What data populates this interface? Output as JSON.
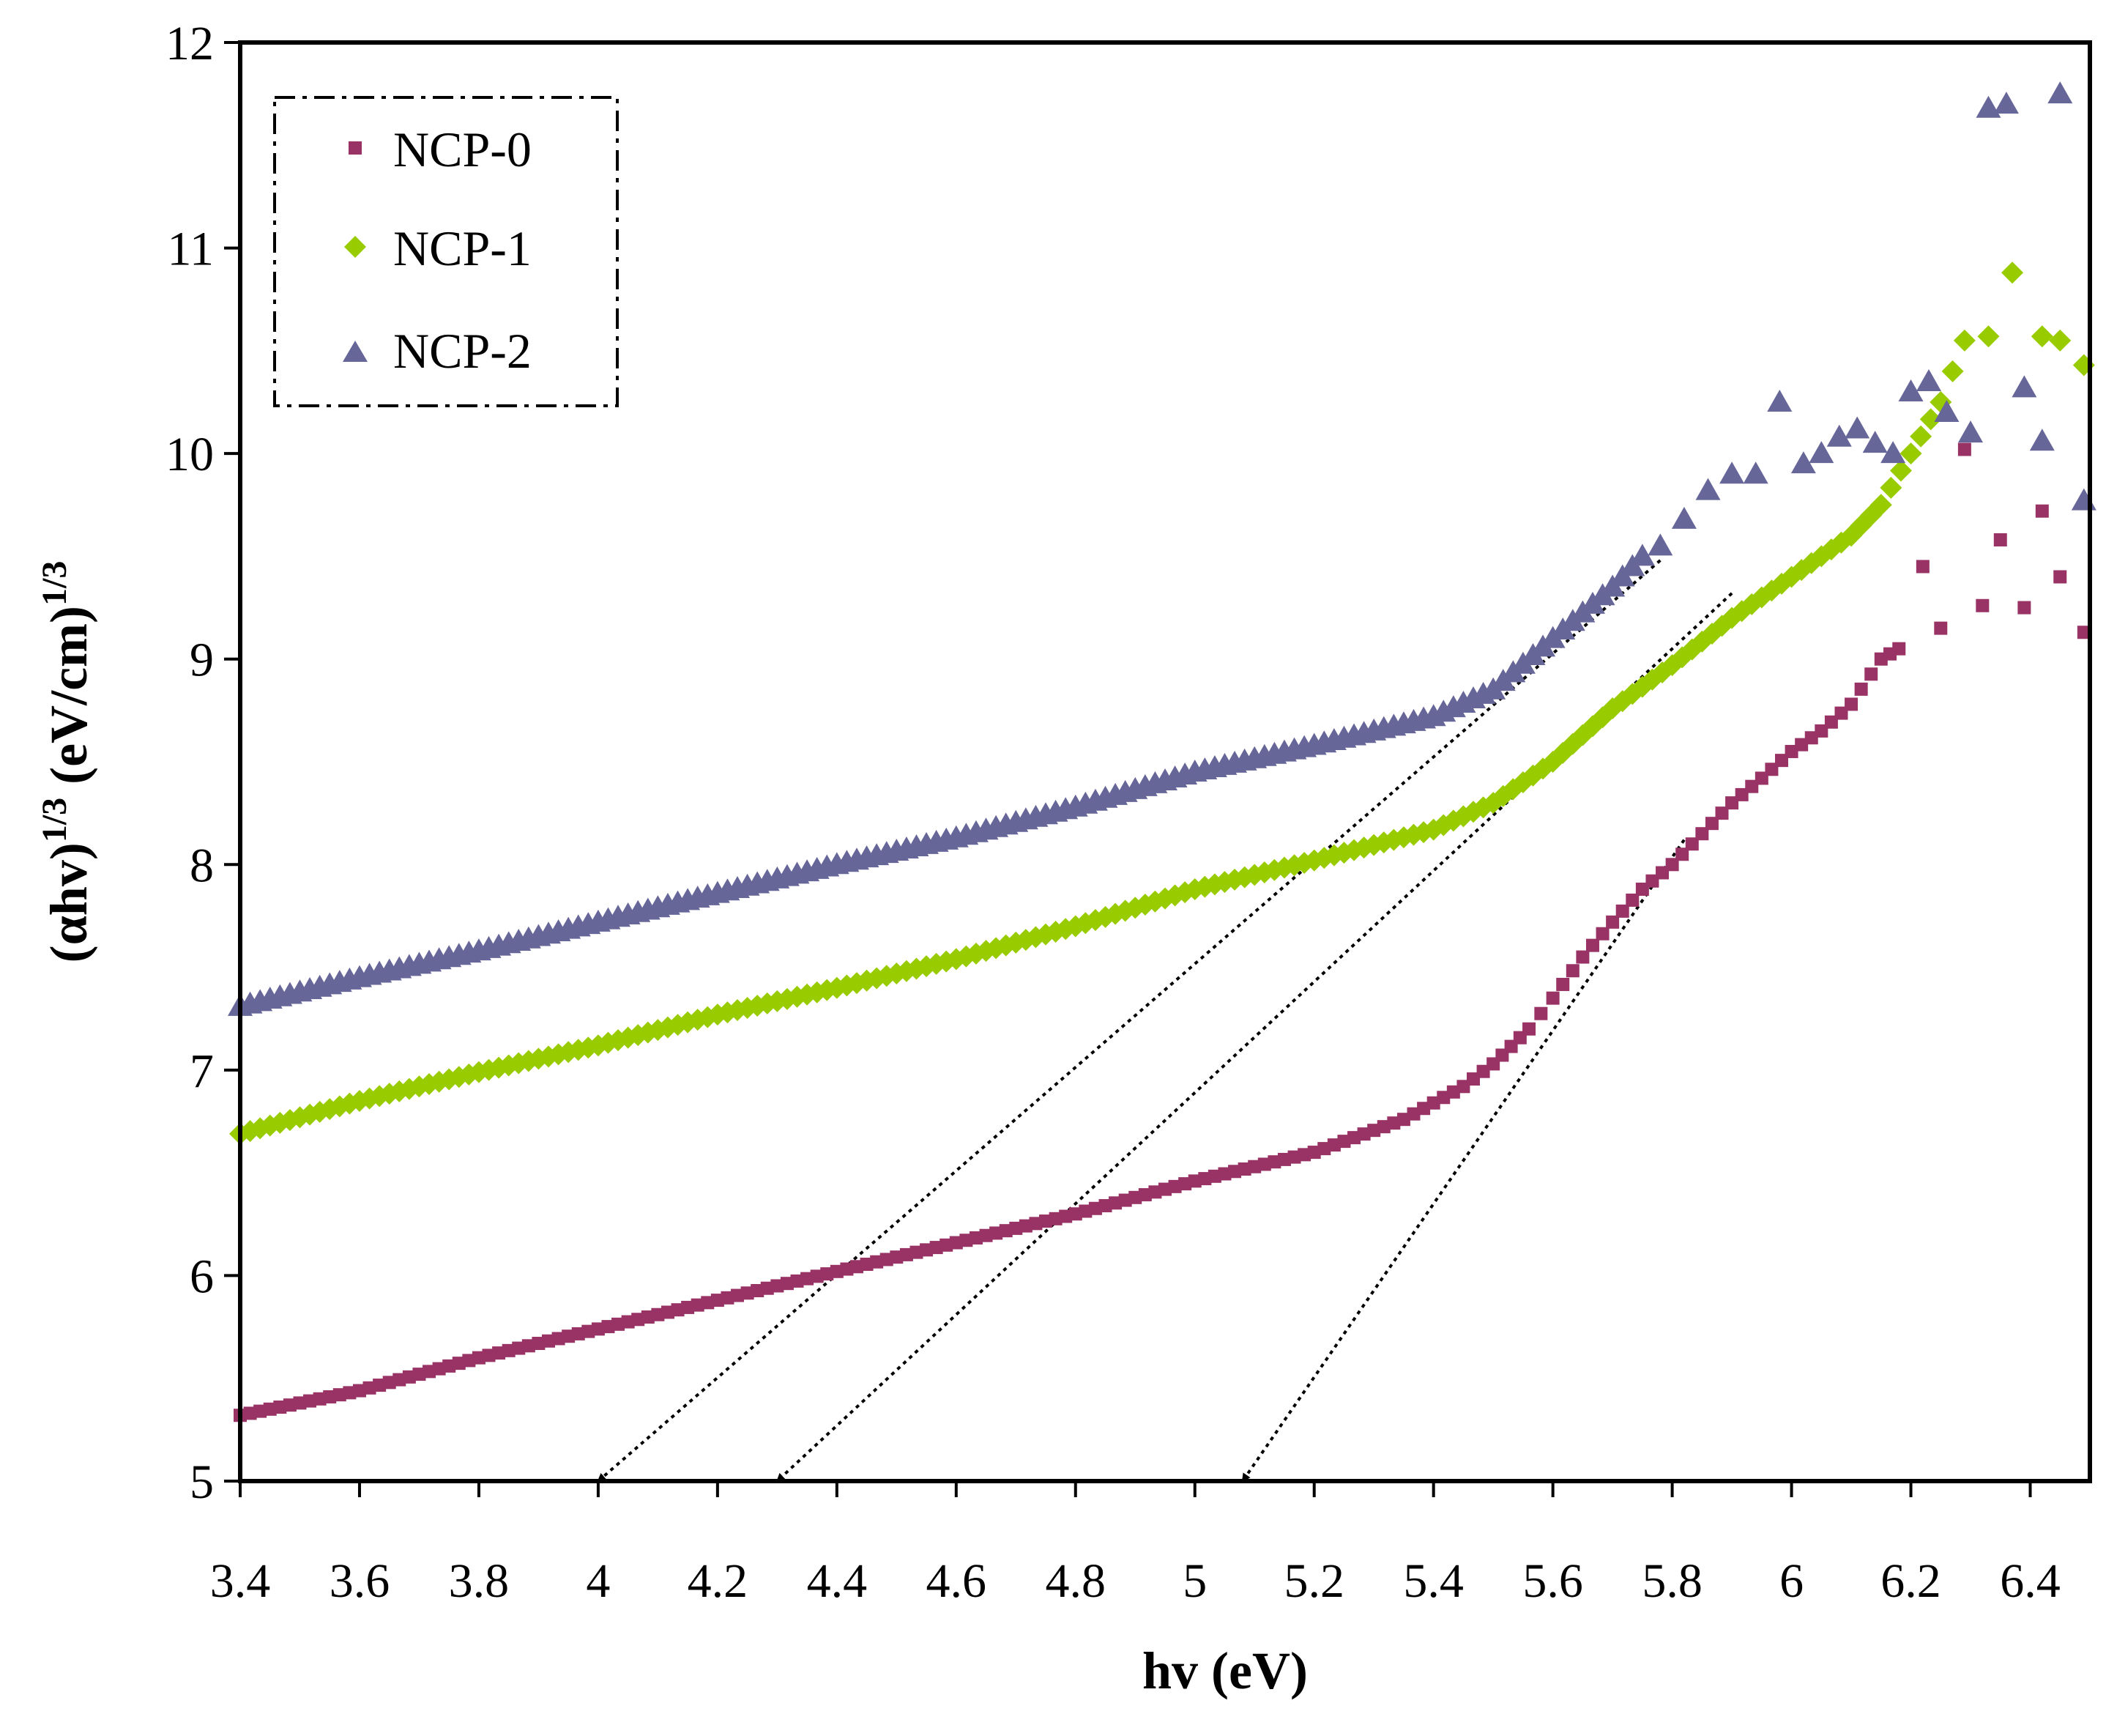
{
  "chart_data": {
    "type": "scatter",
    "title": "",
    "xlabel": "hv (eV)",
    "ylabel_main": "(αhv)",
    "ylabel_sup1": "1/3",
    "ylabel_mid": " (eV/cm)",
    "ylabel_sup2": "1/3",
    "xlim": [
      3.4,
      6.5
    ],
    "ylim": [
      5,
      12
    ],
    "x_ticks": [
      3.4,
      3.6,
      3.8,
      4,
      4.2,
      4.4,
      4.6,
      4.8,
      5,
      5.2,
      5.4,
      5.6,
      5.8,
      6,
      6.2,
      6.4
    ],
    "x_tick_labels": [
      "3.4",
      "3.6",
      "3.8",
      "4",
      "4.2",
      "4.4",
      "4.6",
      "4.8",
      "5",
      "5.2",
      "5.4",
      "5.6",
      "5.8",
      "6",
      "6.2",
      "6.4"
    ],
    "y_ticks": [
      5,
      6,
      7,
      8,
      9,
      10,
      11,
      12
    ],
    "y_tick_labels": [
      "5",
      "6",
      "7",
      "8",
      "9",
      "10",
      "11",
      "12"
    ],
    "grid": false,
    "legend_position": "top-left",
    "series": [
      {
        "name": "NCP-0",
        "marker": "square",
        "color": "#993366",
        "anchors": [
          [
            3.4,
            5.32
          ],
          [
            3.6,
            5.44
          ],
          [
            3.8,
            5.6
          ],
          [
            4.0,
            5.74
          ],
          [
            4.2,
            5.88
          ],
          [
            4.4,
            6.02
          ],
          [
            4.6,
            6.16
          ],
          [
            4.8,
            6.3
          ],
          [
            5.0,
            6.46
          ],
          [
            5.2,
            6.6
          ],
          [
            5.35,
            6.76
          ],
          [
            5.45,
            6.92
          ],
          [
            5.5,
            7.03
          ],
          [
            5.56,
            7.2
          ],
          [
            5.6,
            7.35
          ],
          [
            5.65,
            7.55
          ],
          [
            5.7,
            7.72
          ],
          [
            5.75,
            7.88
          ],
          [
            5.8,
            8.0
          ],
          [
            5.85,
            8.15
          ],
          [
            5.9,
            8.3
          ],
          [
            5.95,
            8.42
          ],
          [
            6.0,
            8.55
          ],
          [
            6.05,
            8.65
          ],
          [
            6.1,
            8.78
          ],
          [
            6.15,
            9.0
          ],
          [
            6.18,
            9.05
          ]
        ],
        "extra_points": [
          [
            6.22,
            9.45
          ],
          [
            6.25,
            9.15
          ],
          [
            6.29,
            10.02
          ],
          [
            6.32,
            9.26
          ],
          [
            6.35,
            9.58
          ],
          [
            6.39,
            9.25
          ],
          [
            6.42,
            9.72
          ],
          [
            6.45,
            9.4
          ],
          [
            6.49,
            9.13
          ]
        ]
      },
      {
        "name": "NCP-1",
        "marker": "diamond",
        "color": "#99CC00",
        "anchors": [
          [
            3.4,
            6.69
          ],
          [
            3.6,
            6.85
          ],
          [
            3.8,
            6.99
          ],
          [
            4.0,
            7.12
          ],
          [
            4.2,
            7.27
          ],
          [
            4.4,
            7.4
          ],
          [
            4.6,
            7.54
          ],
          [
            4.8,
            7.7
          ],
          [
            5.0,
            7.88
          ],
          [
            5.2,
            8.02
          ],
          [
            5.4,
            8.17
          ],
          [
            5.5,
            8.3
          ],
          [
            5.6,
            8.5
          ],
          [
            5.7,
            8.76
          ],
          [
            5.8,
            8.97
          ],
          [
            5.9,
            9.2
          ],
          [
            6.0,
            9.4
          ],
          [
            6.1,
            9.6
          ],
          [
            6.15,
            9.75
          ],
          [
            6.2,
            10.0
          ],
          [
            6.25,
            10.25
          ],
          [
            6.29,
            10.55
          ]
        ],
        "extra_points": [
          [
            6.33,
            10.57
          ],
          [
            6.37,
            10.88
          ],
          [
            6.42,
            10.57
          ],
          [
            6.45,
            10.55
          ],
          [
            6.49,
            10.43
          ]
        ]
      },
      {
        "name": "NCP-2",
        "marker": "triangle",
        "color": "#666699",
        "anchors": [
          [
            3.4,
            7.31
          ],
          [
            3.6,
            7.45
          ],
          [
            3.8,
            7.58
          ],
          [
            4.0,
            7.72
          ],
          [
            4.2,
            7.86
          ],
          [
            4.4,
            8.0
          ],
          [
            4.6,
            8.13
          ],
          [
            4.8,
            8.28
          ],
          [
            5.0,
            8.45
          ],
          [
            5.2,
            8.58
          ],
          [
            5.4,
            8.72
          ],
          [
            5.5,
            8.85
          ],
          [
            5.6,
            9.1
          ],
          [
            5.7,
            9.35
          ],
          [
            5.75,
            9.5
          ]
        ],
        "extra_points": [
          [
            5.78,
            9.55
          ],
          [
            5.82,
            9.68
          ],
          [
            5.86,
            9.82
          ],
          [
            5.9,
            9.9
          ],
          [
            5.94,
            9.9
          ],
          [
            5.98,
            10.25
          ],
          [
            6.02,
            9.95
          ],
          [
            6.05,
            10.0
          ],
          [
            6.08,
            10.08
          ],
          [
            6.11,
            10.12
          ],
          [
            6.14,
            10.05
          ],
          [
            6.17,
            10.0
          ],
          [
            6.2,
            10.3
          ],
          [
            6.23,
            10.35
          ],
          [
            6.26,
            10.2
          ],
          [
            6.3,
            10.1
          ],
          [
            6.33,
            11.68
          ],
          [
            6.36,
            11.7
          ],
          [
            6.39,
            10.32
          ],
          [
            6.42,
            10.06
          ],
          [
            6.45,
            11.75
          ],
          [
            6.49,
            9.77
          ]
        ]
      }
    ],
    "annotations": [
      {
        "type": "dotted-arrow",
        "from": [
          5.78,
          9.48
        ],
        "to": [
          4.0,
          5.0
        ]
      },
      {
        "type": "dotted-arrow",
        "from": [
          5.9,
          9.32
        ],
        "to": [
          4.3,
          5.0
        ]
      },
      {
        "type": "dotted-arrow",
        "from": [
          5.82,
          8.12
        ],
        "to": [
          5.08,
          5.0
        ]
      }
    ]
  }
}
